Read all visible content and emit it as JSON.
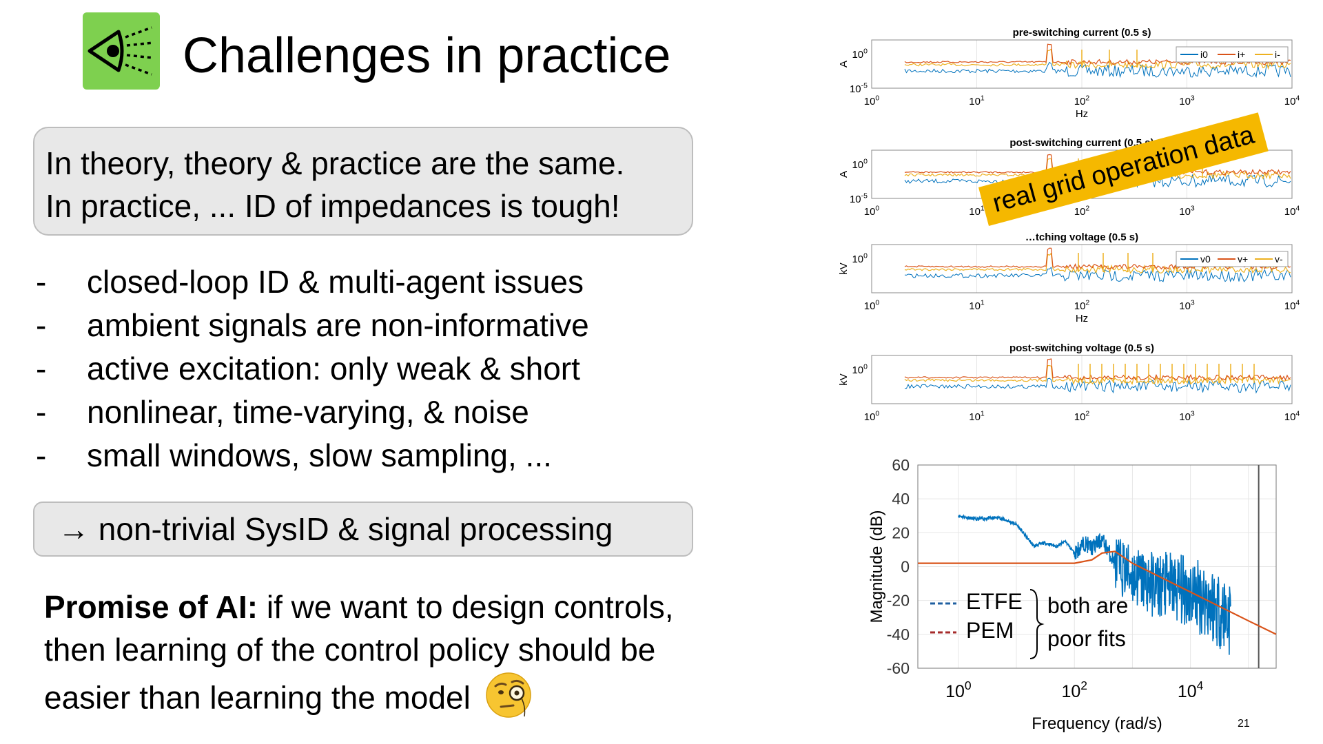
{
  "title": "Challenges in practice",
  "logo": {
    "icon": "eye-with-signal-icon",
    "color": "#7ed04f"
  },
  "quote": {
    "line1": "In theory, theory & practice are the same.",
    "line2": "In practice, ... ID of impedances is tough!"
  },
  "bullets": [
    {
      "dash": "-",
      "text": "closed-loop ID & multi-agent issues"
    },
    {
      "dash": "-",
      "text": "ambient signals are non-informative"
    },
    {
      "dash": "-",
      "text": "active excitation: only weak & short"
    },
    {
      "dash": "-",
      "text": "nonlinear, time-varying, & noise"
    },
    {
      "dash": "-",
      "text": "small windows, slow sampling, ..."
    }
  ],
  "conclusion": "→  non-trivial SysID &  signal processing",
  "promise": {
    "bold": "Promise of AI:",
    "line1": " if we want to design controls,",
    "line2": "then learning of the control policy should be",
    "line3": "easier than learning the model",
    "emoji": "face-with-monocle-icon"
  },
  "spectra_panels": {
    "callout": "real grid operation data",
    "callout_color": "#f5b800",
    "colors": {
      "zero": "#0072bd",
      "plus": "#d95319",
      "minus": "#edb120"
    },
    "panels": [
      {
        "title": "pre-switching current (0.5 s)",
        "ylabel": "A",
        "xlabel": "Hz",
        "yticks": [
          {
            "b": "10",
            "e": "0"
          },
          {
            "b": "10",
            "e": "-5"
          }
        ],
        "xticks": [
          {
            "b": "10",
            "e": "0"
          },
          {
            "b": "10",
            "e": "1"
          },
          {
            "b": "10",
            "e": "2"
          },
          {
            "b": "10",
            "e": "3"
          },
          {
            "b": "10",
            "e": "4"
          }
        ],
        "legend": [
          "i0",
          "i+",
          "i-"
        ]
      },
      {
        "title": "post-switching current (0.5 s)",
        "ylabel": "A",
        "xlabel": "",
        "yticks": [
          {
            "b": "10",
            "e": "0"
          },
          {
            "b": "10",
            "e": "-5"
          }
        ],
        "xticks": [
          {
            "b": "10",
            "e": "0"
          },
          {
            "b": "10",
            "e": "1"
          },
          {
            "b": "10",
            "e": "2"
          },
          {
            "b": "10",
            "e": "3"
          },
          {
            "b": "10",
            "e": "4"
          }
        ],
        "legend": []
      },
      {
        "title": "…tching voltage (0.5 s)",
        "ylabel": "kV",
        "xlabel": "Hz",
        "yticks": [
          {
            "b": "10",
            "e": "0"
          }
        ],
        "xticks": [
          {
            "b": "10",
            "e": "0"
          },
          {
            "b": "10",
            "e": "1"
          },
          {
            "b": "10",
            "e": "2"
          },
          {
            "b": "10",
            "e": "3"
          },
          {
            "b": "10",
            "e": "4"
          }
        ],
        "legend": [
          "v0",
          "v+",
          "v-"
        ]
      },
      {
        "title": "post-switching voltage (0.5 s)",
        "ylabel": "kV",
        "xlabel": "",
        "yticks": [
          {
            "b": "10",
            "e": "0"
          }
        ],
        "xticks": [
          {
            "b": "10",
            "e": "0"
          },
          {
            "b": "10",
            "e": "1"
          },
          {
            "b": "10",
            "e": "2"
          },
          {
            "b": "10",
            "e": "3"
          },
          {
            "b": "10",
            "e": "4"
          }
        ],
        "legend": []
      }
    ]
  },
  "chart_data": {
    "type": "line",
    "xlabel": "Frequency (rad/s)",
    "ylabel": "Magnitude (dB)",
    "xscale": "log",
    "xlim": [
      0.2,
      300000
    ],
    "ylim": [
      -60,
      60
    ],
    "yticks": [
      60,
      40,
      20,
      0,
      -20,
      -40,
      -60
    ],
    "xticks": [
      {
        "b": "10",
        "e": "0"
      },
      {
        "b": "10",
        "e": "2"
      },
      {
        "b": "10",
        "e": "4"
      }
    ],
    "grid": true,
    "legend_placement": "bottom-left",
    "legend_note": [
      "both are",
      "poor fits"
    ],
    "series": [
      {
        "name": "ETFE",
        "color": "#0072bd",
        "x": [
          1,
          2,
          5,
          10,
          20,
          30,
          40,
          50,
          70,
          100,
          150,
          200,
          300,
          500,
          1000,
          2000,
          5000,
          10000,
          20000,
          30000,
          50000
        ],
        "y": [
          30,
          28,
          29,
          25,
          12,
          14,
          13,
          12,
          15,
          8,
          14,
          11,
          16,
          2,
          -5,
          -10,
          -12,
          -15,
          -20,
          -25,
          -30
        ]
      },
      {
        "name": "PEM",
        "color": "#d95319",
        "x": [
          0.2,
          1,
          10,
          100,
          200,
          300,
          500,
          1000,
          10000,
          100000,
          300000
        ],
        "y": [
          2,
          2,
          2,
          2,
          4,
          8,
          9,
          2,
          -15,
          -32,
          -40
        ]
      }
    ]
  },
  "page_number": "21"
}
